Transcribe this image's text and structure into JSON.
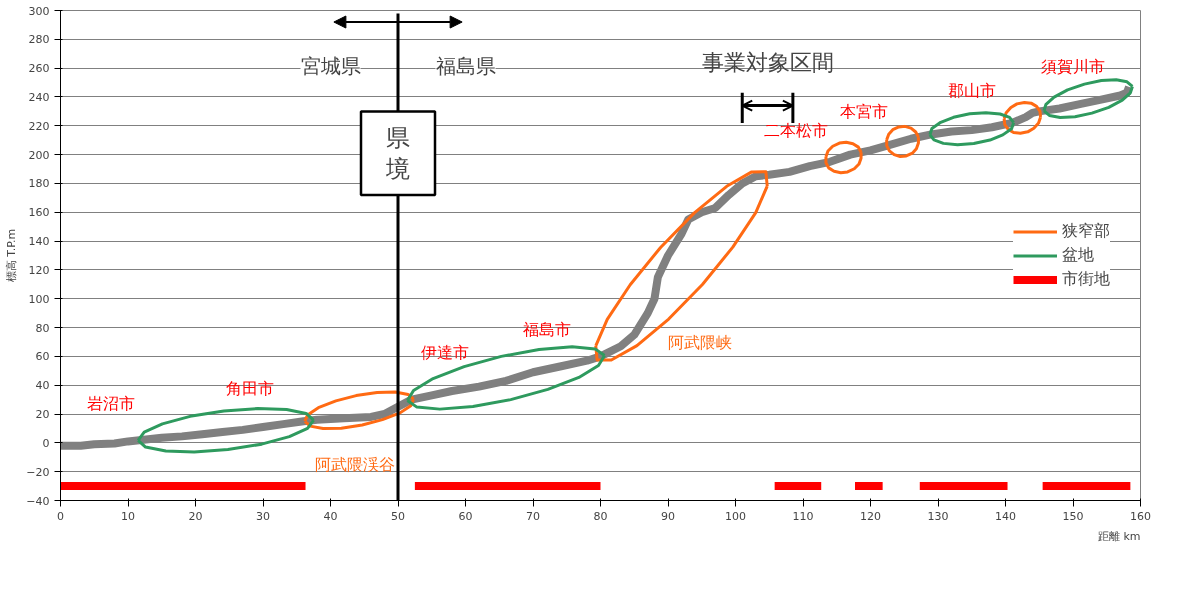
{
  "chart_data": {
    "type": "line",
    "xlabel": "距離 km",
    "ylabel": "標高 T.P.m",
    "xlim": [
      0,
      160
    ],
    "ylim": [
      -40,
      300
    ],
    "xticks": [
      0,
      10,
      20,
      30,
      40,
      50,
      60,
      70,
      80,
      90,
      100,
      110,
      120,
      130,
      140,
      150,
      160
    ],
    "yticks": [
      -40,
      -20,
      0,
      20,
      40,
      60,
      80,
      100,
      120,
      140,
      160,
      180,
      200,
      220,
      240,
      260,
      280,
      300
    ],
    "grid": "y",
    "line_style": "solid",
    "legend": "right",
    "series": [
      {
        "color": "#808080",
        "x": [
          0,
          3,
          5,
          8,
          10,
          12,
          15,
          18,
          21,
          24,
          27,
          30,
          33,
          36,
          38,
          42,
          46,
          48,
          50,
          52,
          55,
          58,
          62,
          66,
          70,
          74,
          78,
          80,
          83,
          85,
          87,
          88,
          88.5,
          90,
          92,
          93,
          95,
          97,
          99,
          101,
          103,
          105,
          108,
          111,
          114,
          117,
          120,
          123,
          126,
          129,
          132,
          135,
          138,
          141,
          143,
          144,
          145,
          148,
          151,
          154,
          157,
          158,
          158.3
        ],
        "values": [
          -2,
          -2,
          -1,
          -0.5,
          1,
          2,
          3.5,
          4.5,
          6,
          7.5,
          9,
          11,
          13,
          15,
          16,
          17,
          18,
          20,
          25,
          30,
          33,
          36,
          39,
          43,
          49,
          53,
          57,
          60,
          67,
          75,
          90,
          100,
          115,
          130,
          145,
          155,
          160,
          163,
          172,
          180,
          185,
          186,
          188,
          192,
          195,
          200,
          203,
          207,
          211,
          214,
          216,
          217,
          219,
          222,
          226,
          229,
          230,
          232,
          235,
          238,
          241,
          243,
          247
        ]
      },
      {
        "type": "line",
        "name": "狭窄部",
        "color": "#ff6a13",
        "x": [
          36.2,
          36.6,
          38.2,
          40.8,
          43.8,
          46.9,
          49.6,
          51.5,
          52.3,
          null,
          36.2,
          37.0,
          38.9,
          41.6,
          44.7,
          47.7,
          50.3,
          51.9,
          52.3,
          null,
          79.3,
          81.0,
          84.4,
          88.9,
          93.9,
          98.7,
          102.4,
          104.5,
          104.7,
          null,
          79.3,
          79.5,
          81.6,
          85.4,
          90.1,
          95.1,
          99.6,
          103.0,
          104.7,
          null,
          113.4,
          113.7,
          114.4,
          115.4,
          116.4,
          117.4,
          118.2,
          118.6,
          null,
          113.4,
          113.4,
          113.8,
          114.6,
          115.6,
          116.6,
          117.6,
          118.3,
          118.6,
          118.6,
          null,
          122.4,
          122.7,
          123.3,
          124.2,
          125.1,
          126.0,
          126.7,
          127.1,
          null,
          122.4,
          122.4,
          122.8,
          123.5,
          124.4,
          125.3,
          126.2,
          126.8,
          127.1,
          127.1,
          null,
          139.8,
          140.1,
          140.8,
          141.7,
          142.8,
          143.8,
          144.6,
          145.1,
          145.2,
          null,
          139.8,
          139.9,
          140.4,
          141.2,
          142.2,
          143.3,
          144.2,
          144.9,
          145.2
        ],
        "values": [
          14.9,
          19.4,
          24.4,
          29.1,
          32.8,
          35.0,
          35.3,
          33.6,
          30.3,
          null,
          14.9,
          11.6,
          9.9,
          10.2,
          12.4,
          16.1,
          20.8,
          25.8,
          30.3,
          null,
          67.3,
          85.7,
          109.7,
          135.6,
          159.6,
          178.0,
          188.0,
          188.1,
          178.2,
          null,
          67.3,
          57.5,
          57.5,
          67.5,
          85.9,
          109.9,
          135.8,
          159.8,
          178.2,
          null,
          198.5,
          202.5,
          205.8,
          208.0,
          208.6,
          207.6,
          205.2,
          201.6,
          null,
          198.5,
          194.4,
          190.8,
          188.4,
          187.4,
          188.0,
          190.2,
          193.5,
          197.5,
          201.6,
          null,
          210.3,
          214.2,
          217.3,
          219.2,
          219.6,
          218.4,
          215.7,
          212.1,
          null,
          210.3,
          206.2,
          202.6,
          200.0,
          198.7,
          199.1,
          201.0,
          204.1,
          208.0,
          212.1,
          null,
          224.9,
          229.1,
          232.7,
          235.2,
          236.2,
          235.7,
          233.5,
          230.2,
          226.1,
          null,
          224.9,
          220.8,
          217.5,
          215.3,
          214.8,
          215.8,
          218.3,
          221.9,
          226.1
        ]
      },
      {
        "type": "line",
        "name": "盆地",
        "color": "#2e9a5e",
        "x": [
          11.5,
          12.4,
          15.1,
          19.2,
          24.2,
          29.2,
          33.5,
          36.4,
          37.5,
          null,
          11.5,
          12.6,
          15.6,
          19.8,
          24.8,
          29.8,
          33.9,
          36.6,
          37.5,
          null,
          51.4,
          52.3,
          55.2,
          59.8,
          65.3,
          70.9,
          75.8,
          79.2,
          80.6,
          null,
          51.4,
          52.8,
          56.2,
          61.1,
          66.7,
          72.2,
          76.8,
          79.7,
          80.6,
          null,
          128.8,
          129.1,
          130.4,
          132.3,
          134.7,
          137.1,
          139.2,
          140.6,
          141.2,
          null,
          128.8,
          129.4,
          130.8,
          132.9,
          135.3,
          137.7,
          139.6,
          140.9,
          141.2,
          null,
          145.7,
          146.0,
          147.2,
          149.2,
          151.7,
          154.2,
          156.4,
          158.0,
          158.8,
          null,
          145.7,
          146.5,
          148.1,
          150.3,
          152.8,
          155.3,
          157.3,
          158.5,
          158.8
        ],
        "values": [
          1.7,
          7.4,
          13.2,
          18.4,
          22.1,
          23.8,
          23.2,
          20.4,
          15.8,
          null,
          1.7,
          -2.9,
          -5.7,
          -6.3,
          -4.6,
          -0.9,
          4.3,
          10.1,
          15.8,
          null,
          29.4,
          36.3,
          44.6,
          52.9,
          60.0,
          64.8,
          66.7,
          65.2,
          60.6,
          null,
          29.4,
          24.8,
          23.4,
          25.2,
          30.0,
          37.1,
          45.4,
          53.7,
          60.6,
          null,
          213.8,
          218.1,
          222.4,
          225.9,
          228.3,
          229.1,
          228.2,
          225.8,
          222.2,
          null,
          213.8,
          210.2,
          207.8,
          206.9,
          207.7,
          210.1,
          213.7,
          217.9,
          222.2,
          null,
          230.4,
          234.9,
          239.9,
          244.9,
          248.9,
          251.4,
          251.9,
          250.5,
          247.3,
          null,
          230.4,
          227.2,
          225.8,
          226.3,
          228.8,
          232.8,
          237.8,
          242.9,
          247.3
        ]
      },
      {
        "type": "line",
        "name": "市街地",
        "color": "#ff0000",
        "x": [
          0,
          36.3,
          null,
          52.5,
          80,
          null,
          105.8,
          112.7,
          null,
          117.7,
          121.8,
          null,
          127.3,
          140.3,
          null,
          145.5,
          158.5
        ],
        "values": [
          -30,
          -30,
          null,
          -30,
          -30,
          null,
          -30,
          -30,
          null,
          -30,
          -30,
          null,
          -30,
          -30,
          null,
          -30,
          -30
        ]
      },
      {
        "type": "line",
        "color": "#000000",
        "x": [
          101,
          101,
          null,
          108.5,
          108.5,
          null,
          101,
          108.5
        ],
        "values": [
          222,
          243,
          null,
          222,
          243,
          null,
          234,
          234
        ]
      }
    ],
    "ref_lines": [
      {
        "axis": "x",
        "value": 50,
        "label": "県境"
      }
    ],
    "annotations": [
      "宮城県",
      "福島県",
      "事業対象区間",
      {
        "text": "岩沼市",
        "x": 7.5,
        "y": -0.6
      },
      {
        "text": "角田市",
        "x": 28,
        "y": 9.7
      },
      {
        "text": "阿武隈渓谷",
        "x": 37,
        "y": 15.5
      },
      {
        "text": "伊達市",
        "x": 57,
        "y": 35
      },
      {
        "text": "福島市",
        "x": 72,
        "y": 51
      },
      {
        "text": "阿武隈峡",
        "x": 88,
        "y": 100
      },
      {
        "text": "二本松市",
        "x": 109,
        "y": 189.3
      },
      {
        "text": "本宮市",
        "x": 119,
        "y": 202
      },
      {
        "text": "郡山市",
        "x": 135,
        "y": 217
      },
      {
        "text": "須賀川市",
        "x": 150,
        "y": 233.5
      }
    ]
  }
}
